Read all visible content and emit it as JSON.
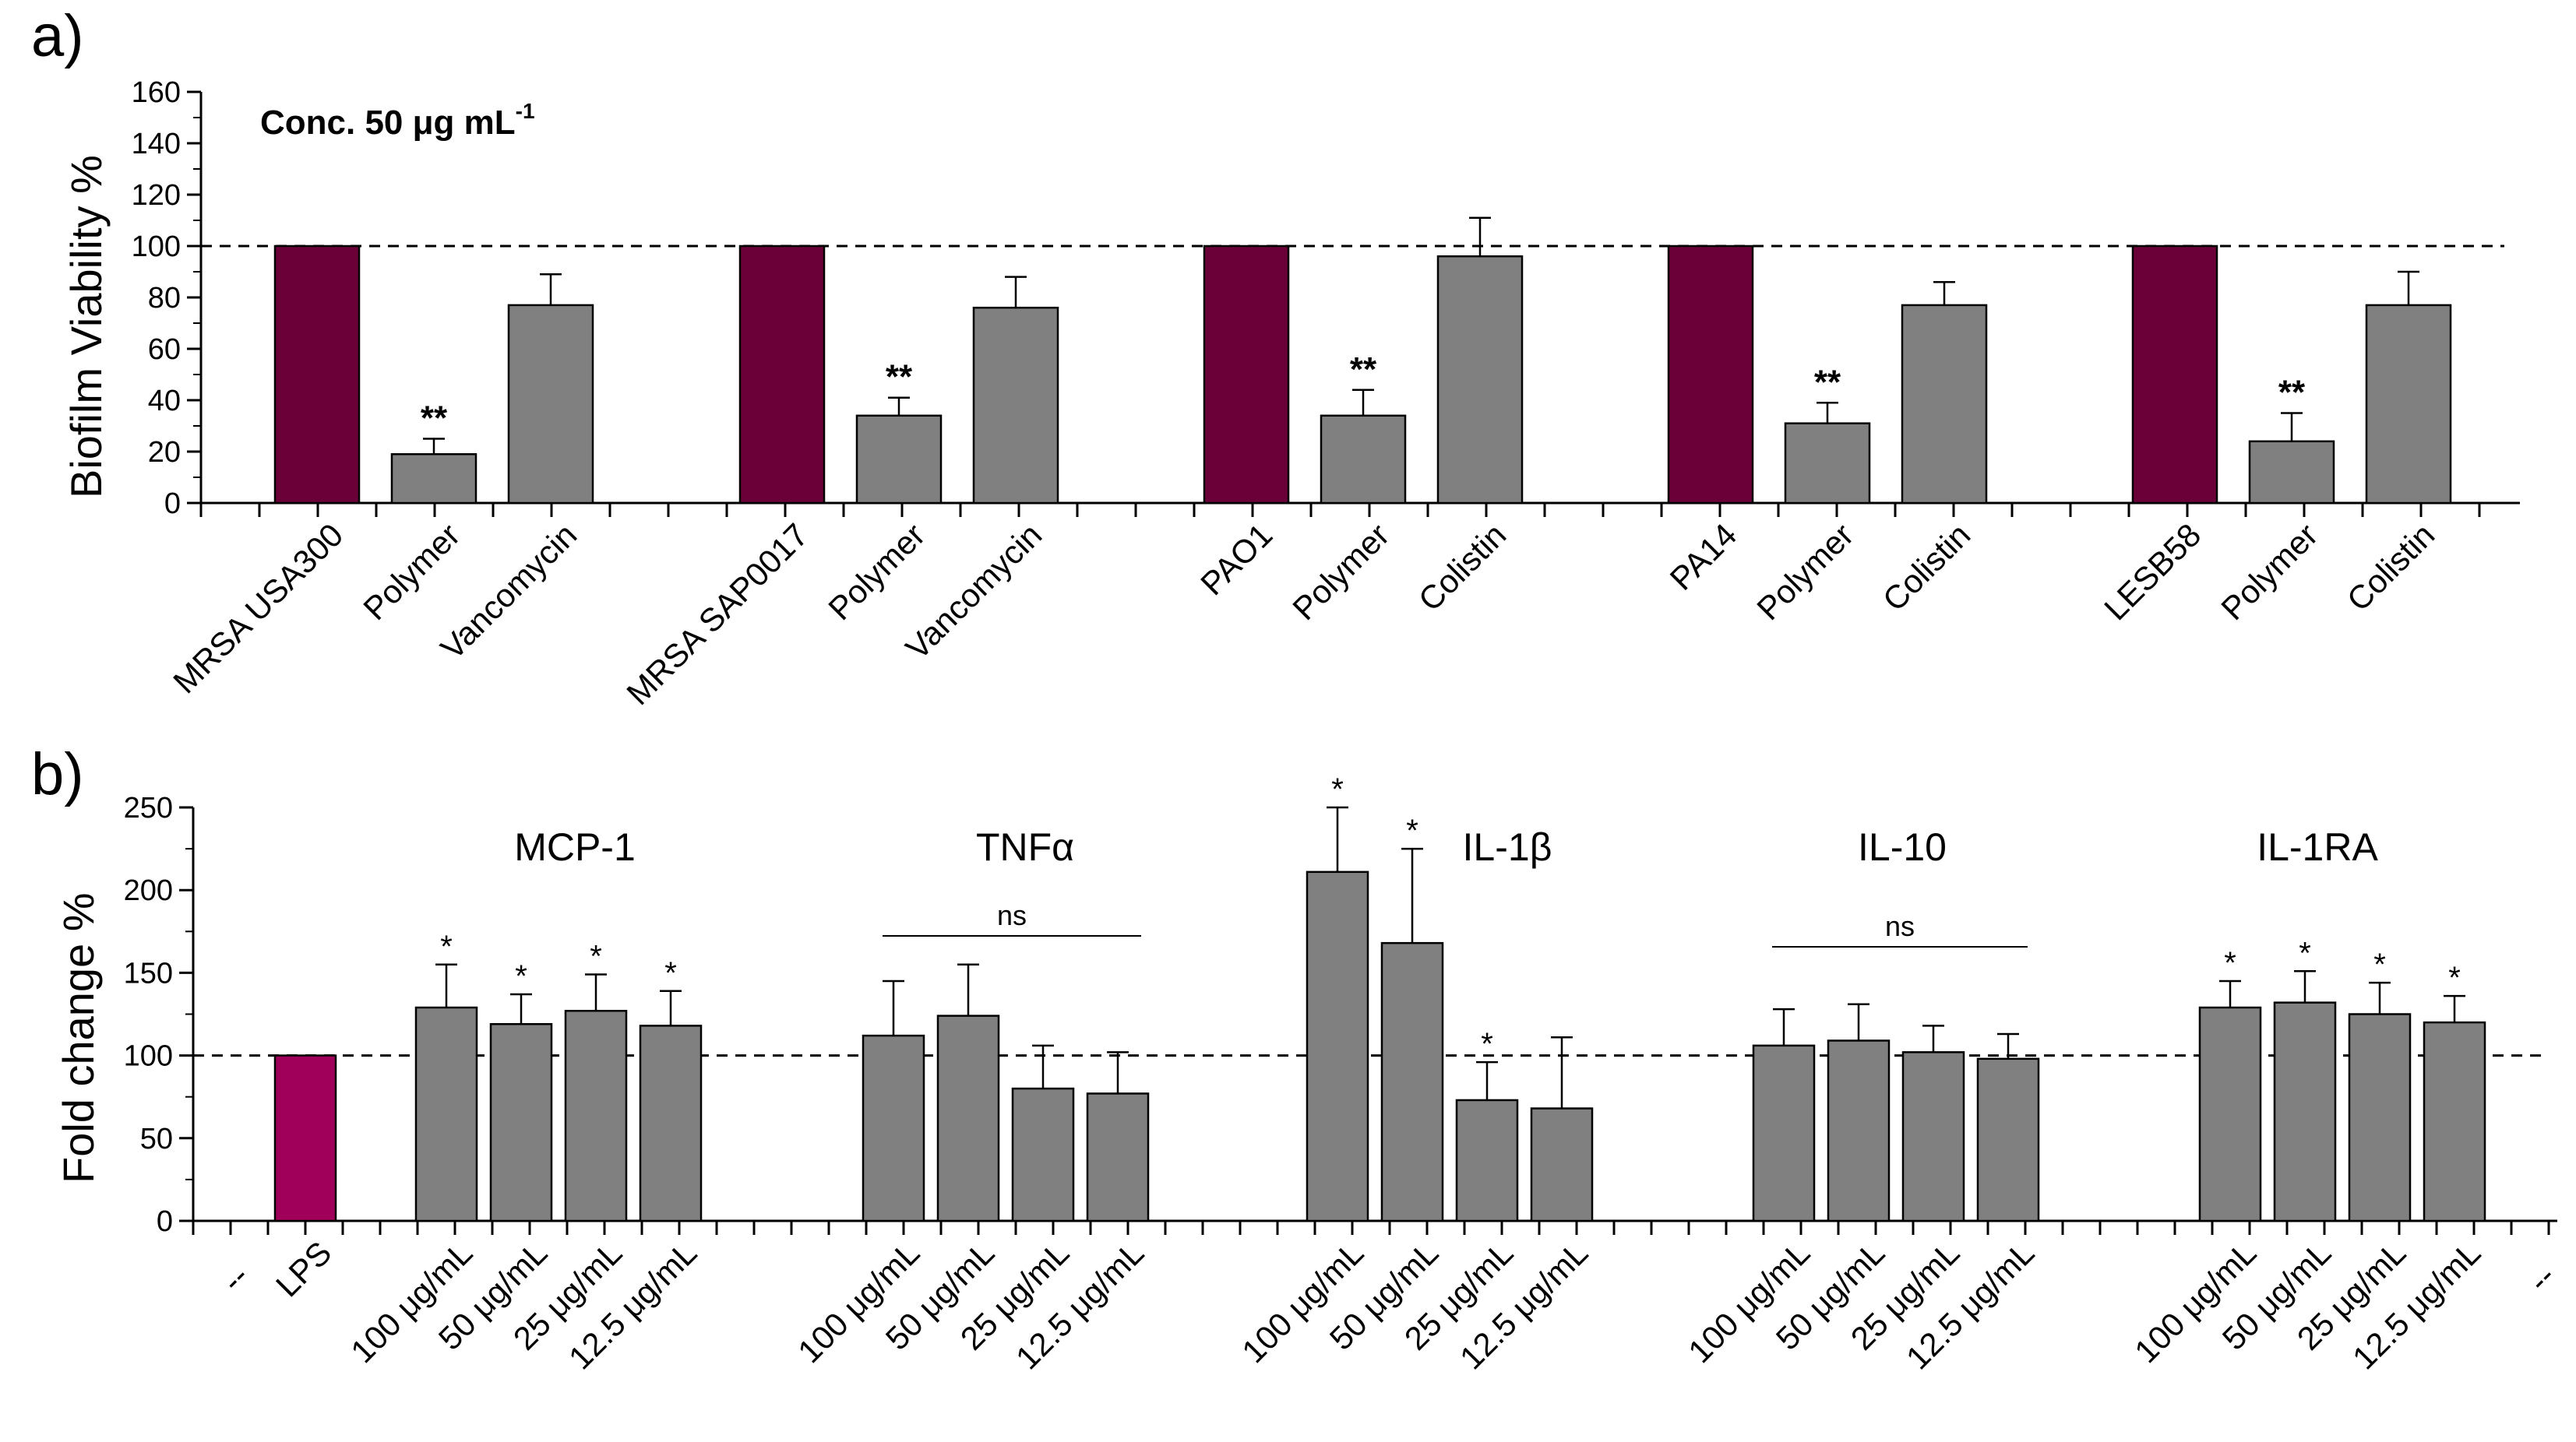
{
  "panel_a": {
    "letter": "a)",
    "annotation_main": "Conc. 50 μg mL",
    "annotation_sup": "-1"
  },
  "panel_b": {
    "letter": "b)",
    "ns_labels": [
      "ns",
      "ns"
    ]
  },
  "colors": {
    "bar_gray": "#808080",
    "bar_maroon": "#6b0039",
    "bar_lps": "#a0005a"
  },
  "chart_data": [
    {
      "type": "bar",
      "panel": "a",
      "title": "",
      "xlabel": "",
      "ylabel": "Biofilm Viability %",
      "ylim": [
        0,
        160
      ],
      "yticks": [
        0,
        20,
        40,
        60,
        80,
        100,
        120,
        140,
        160
      ],
      "reference_line": 100,
      "categories": [
        "MRSA USA300",
        "Polymer",
        "Vancomycin",
        "MRSA SAP0017",
        "Polymer",
        "Vancomycin",
        "PAO1",
        "Polymer",
        "Colistin",
        "PA14",
        "Polymer",
        "Colistin",
        "LESB58",
        "Polymer",
        "Colistin"
      ],
      "values": [
        100,
        19,
        77,
        100,
        34,
        76,
        100,
        34,
        96,
        100,
        31,
        77,
        100,
        24,
        77
      ],
      "errors": [
        0,
        6,
        12,
        0,
        7,
        12,
        0,
        10,
        15,
        0,
        8,
        9,
        0,
        11,
        13
      ],
      "significance": [
        "",
        "**",
        "",
        "",
        "**",
        "",
        "",
        "**",
        "",
        "",
        "**",
        "",
        "",
        "**",
        ""
      ],
      "bar_colors": [
        "maroon",
        "gray",
        "gray",
        "maroon",
        "gray",
        "gray",
        "maroon",
        "gray",
        "gray",
        "maroon",
        "gray",
        "gray",
        "maroon",
        "gray",
        "gray"
      ]
    },
    {
      "type": "bar",
      "panel": "b",
      "title": "",
      "xlabel": "",
      "ylabel": "Fold change %",
      "ylim": [
        0,
        250
      ],
      "yticks": [
        0,
        50,
        100,
        150,
        200,
        250
      ],
      "reference_line": 100,
      "edge_labels": [
        "--",
        "--"
      ],
      "groups": [
        "MCP-1",
        "TNFα",
        "IL-1β",
        "IL-10",
        "IL-1RA"
      ],
      "categories": [
        "LPS",
        "100 μg/mL",
        "50 μg/mL",
        "25 μg/mL",
        "12.5 μg/mL",
        "100 μg/mL",
        "50 μg/mL",
        "25 μg/mL",
        "12.5 μg/mL",
        "100 μg/mL",
        "50 μg/mL",
        "25 μg/mL",
        "12.5 μg/mL",
        "100 μg/mL",
        "50 μg/mL",
        "25 μg/mL",
        "12.5 μg/mL",
        "100 μg/mL",
        "50 μg/mL",
        "25 μg/mL",
        "12.5 μg/mL"
      ],
      "values": [
        100,
        129,
        119,
        127,
        118,
        112,
        124,
        80,
        77,
        211,
        168,
        73,
        68,
        106,
        109,
        102,
        98,
        129,
        132,
        125,
        120
      ],
      "errors": [
        0,
        26,
        18,
        22,
        21,
        33,
        31,
        26,
        25,
        39,
        57,
        23,
        43,
        22,
        22,
        16,
        15,
        16,
        19,
        19,
        16
      ],
      "significance": [
        "",
        "*",
        "*",
        "*",
        "*",
        "",
        "",
        "",
        "",
        "*",
        "*",
        "*",
        "",
        "",
        "",
        "",
        "",
        "*",
        "*",
        "*",
        "*"
      ],
      "bar_colors": [
        "lps",
        "gray",
        "gray",
        "gray",
        "gray",
        "gray",
        "gray",
        "gray",
        "gray",
        "gray",
        "gray",
        "gray",
        "gray",
        "gray",
        "gray",
        "gray",
        "gray",
        "gray",
        "gray",
        "gray",
        "gray"
      ]
    }
  ]
}
